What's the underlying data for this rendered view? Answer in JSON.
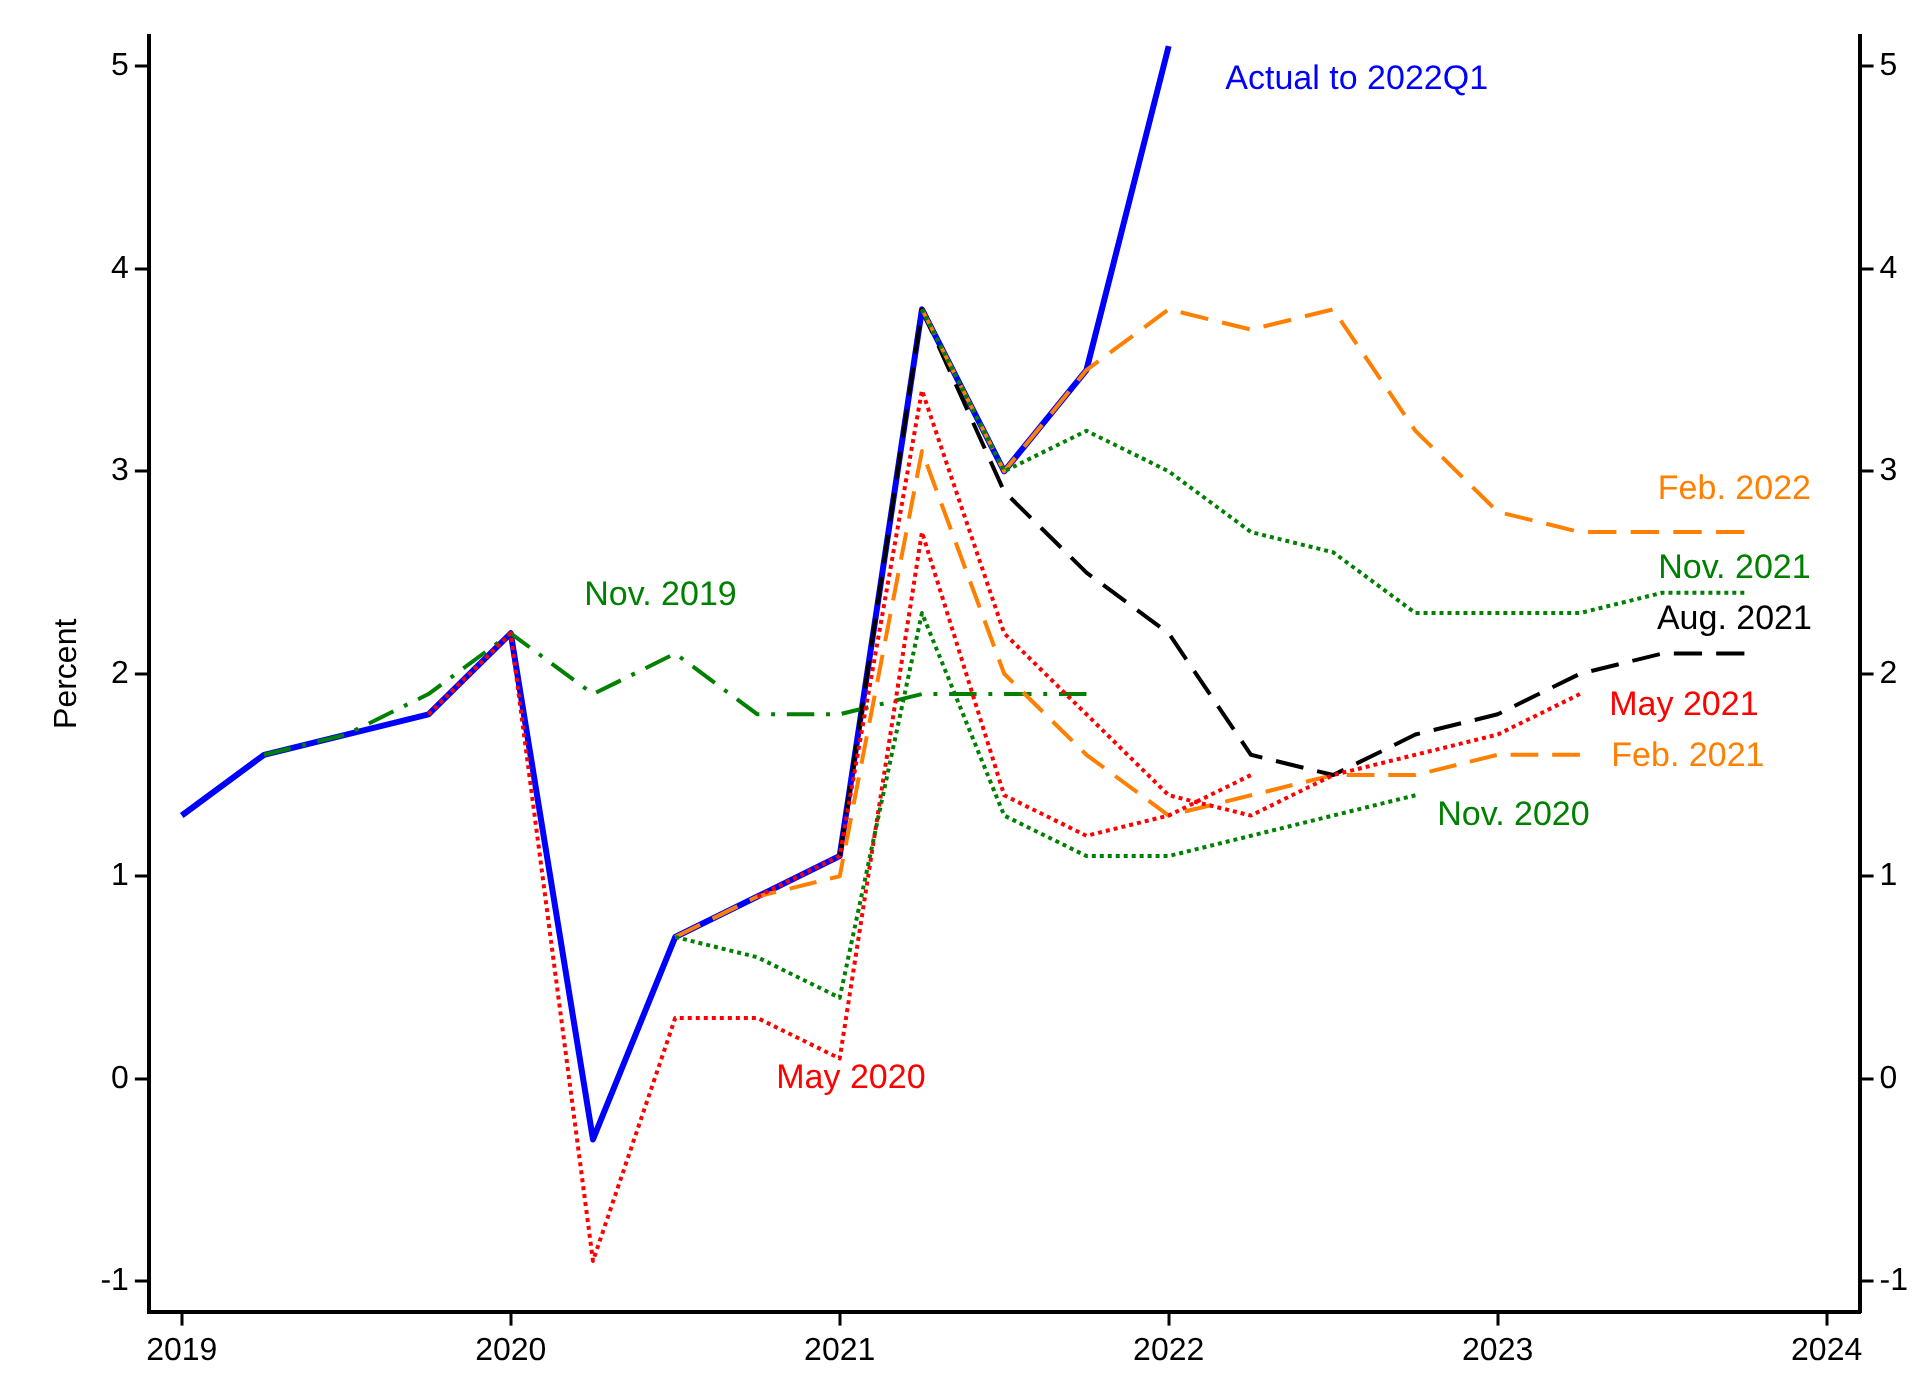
{
  "chart_data": {
    "type": "line",
    "ylabel": "Percent",
    "xlim": [
      2018.9,
      2024.1
    ],
    "xticks": [
      2019,
      2020,
      2021,
      2022,
      2023,
      2024
    ],
    "ylim": [
      -1.15,
      5.15
    ],
    "yticks": [
      -1,
      0,
      1,
      2,
      3,
      4,
      5
    ],
    "y2lim": [
      -1.15,
      5.15
    ],
    "y2ticks": [
      -1,
      0,
      1,
      2,
      3,
      4,
      5
    ],
    "grid": false,
    "legend": false,
    "marker": "none",
    "series": [
      {
        "name": "Actual to 2022Q1",
        "color": "#0000ff",
        "line_style": "solid",
        "x": [
          2019,
          2019.25,
          2019.5,
          2019.75,
          2020,
          2020.25,
          2020.5,
          2020.75,
          2021,
          2021.25,
          2021.5,
          2021.75,
          2022
        ],
        "values": [
          1.3,
          1.6,
          1.7,
          1.8,
          2.2,
          -0.3,
          0.7,
          0.9,
          1.1,
          3.8,
          3.0,
          3.5,
          5.1
        ]
      },
      {
        "name": "Nov. 2019",
        "color": "#008000",
        "line_style": "dashdot",
        "x": [
          2019.25,
          2019.5,
          2019.75,
          2020,
          2020.25,
          2020.5,
          2020.75,
          2021,
          2021.25,
          2021.5,
          2021.75
        ],
        "values": [
          1.6,
          1.7,
          1.9,
          2.2,
          1.9,
          2.1,
          1.8,
          1.8,
          1.9,
          1.9,
          1.9
        ]
      },
      {
        "name": "May 2020",
        "color": "#ff0000",
        "line_style": "dotted",
        "x": [
          2019.75,
          2020,
          2020.25,
          2020.5,
          2020.75,
          2021,
          2021.25,
          2021.5,
          2021.75,
          2022,
          2022.25
        ],
        "values": [
          1.8,
          2.2,
          -0.9,
          0.3,
          0.3,
          0.1,
          2.7,
          1.4,
          1.2,
          1.3,
          1.5
        ]
      },
      {
        "name": "Nov. 2020",
        "color": "#008000",
        "line_style": "dotted",
        "x": [
          2020.5,
          2020.75,
          2021,
          2021.25,
          2021.5,
          2021.75,
          2022,
          2022.25,
          2022.5,
          2022.75
        ],
        "values": [
          0.7,
          0.6,
          0.4,
          2.3,
          1.3,
          1.1,
          1.1,
          1.2,
          1.3,
          1.4
        ]
      },
      {
        "name": "Feb. 2021",
        "color": "#ff8000",
        "line_style": "dashed",
        "x": [
          2020.5,
          2020.75,
          2021,
          2021.25,
          2021.5,
          2021.75,
          2022,
          2022.25,
          2022.5,
          2022.75,
          2023,
          2023.25
        ],
        "values": [
          0.7,
          0.9,
          1.0,
          3.1,
          2.0,
          1.6,
          1.3,
          1.4,
          1.5,
          1.5,
          1.6,
          1.6
        ]
      },
      {
        "name": "May 2021",
        "color": "#ff0000",
        "line_style": "dotted",
        "x": [
          2020.75,
          2021,
          2021.25,
          2021.5,
          2021.75,
          2022,
          2022.25,
          2022.5,
          2022.75,
          2023,
          2023.25
        ],
        "values": [
          0.9,
          1.1,
          3.4,
          2.2,
          1.8,
          1.4,
          1.3,
          1.5,
          1.6,
          1.7,
          1.9
        ]
      },
      {
        "name": "Aug. 2021",
        "color": "#000000",
        "line_style": "dashed",
        "x": [
          2021,
          2021.25,
          2021.5,
          2021.75,
          2022,
          2022.25,
          2022.5,
          2022.75,
          2023,
          2023.25,
          2023.5,
          2023.75
        ],
        "values": [
          1.1,
          3.8,
          2.9,
          2.5,
          2.2,
          1.6,
          1.5,
          1.7,
          1.8,
          2.0,
          2.1,
          2.1
        ]
      },
      {
        "name": "Nov. 2021",
        "color": "#008000",
        "line_style": "dotted",
        "x": [
          2021.25,
          2021.5,
          2021.75,
          2022,
          2022.25,
          2022.5,
          2022.75,
          2023,
          2023.25,
          2023.5,
          2023.75
        ],
        "values": [
          3.8,
          3.0,
          3.2,
          3.0,
          2.7,
          2.6,
          2.3,
          2.3,
          2.3,
          2.4,
          2.4
        ]
      },
      {
        "name": "Feb. 2022",
        "color": "#ff8000",
        "line_style": "dashed",
        "x": [
          2021.25,
          2021.5,
          2021.75,
          2022,
          2022.25,
          2022.5,
          2022.75,
          2023,
          2023.25,
          2023.5,
          2023.75
        ],
        "values": [
          3.8,
          3.0,
          3.5,
          3.8,
          3.7,
          3.8,
          3.2,
          2.8,
          2.7,
          2.7,
          2.7
        ]
      }
    ]
  }
}
